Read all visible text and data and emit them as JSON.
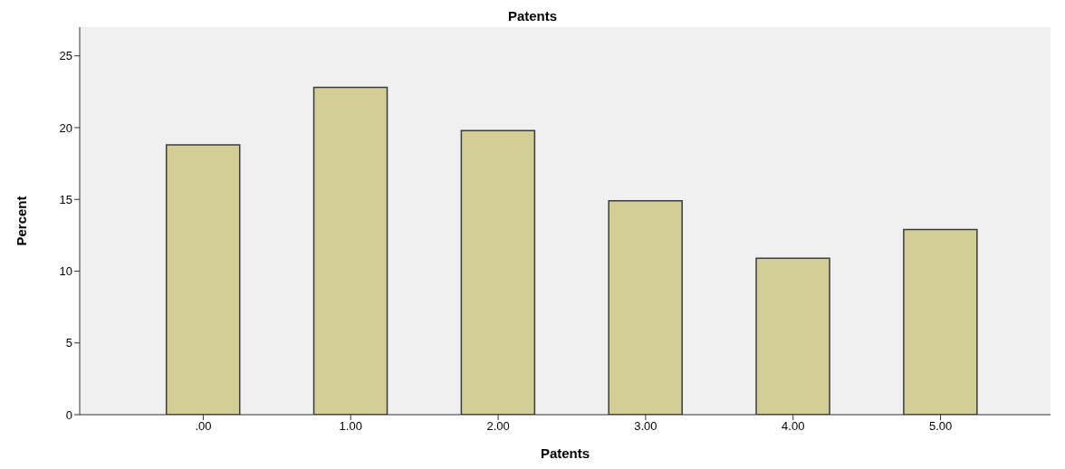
{
  "chart_data": {
    "type": "bar",
    "title": "Patents",
    "xlabel": "Patents",
    "ylabel": "Percent",
    "categories": [
      ".00",
      "1.00",
      "2.00",
      "3.00",
      "4.00",
      "5.00"
    ],
    "values": [
      18.8,
      22.8,
      19.8,
      14.9,
      10.9,
      12.9
    ],
    "color": "#d3cd96",
    "ylim": [
      0,
      27
    ],
    "yticks": [
      0,
      5,
      10,
      15,
      20,
      25
    ]
  }
}
